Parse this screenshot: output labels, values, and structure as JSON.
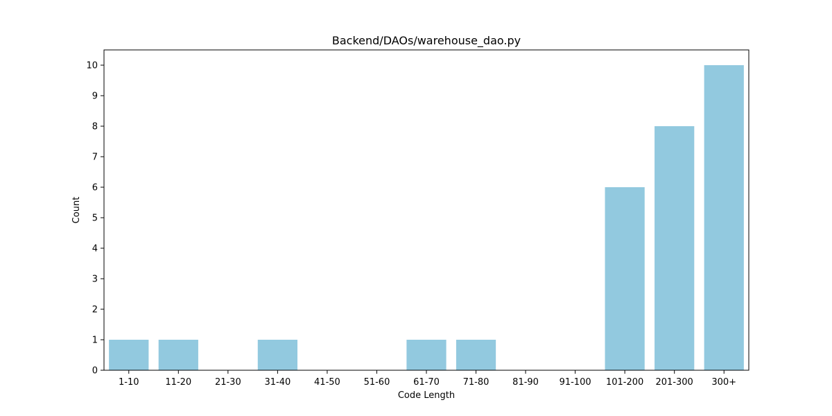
{
  "chart_data": {
    "type": "bar",
    "title": "Backend/DAOs/warehouse_dao.py",
    "xlabel": "Code Length",
    "ylabel": "Count",
    "categories": [
      "1-10",
      "11-20",
      "21-30",
      "31-40",
      "41-50",
      "51-60",
      "61-70",
      "71-80",
      "81-90",
      "91-100",
      "101-200",
      "201-300",
      "300+"
    ],
    "values": [
      1,
      1,
      0,
      1,
      0,
      0,
      1,
      1,
      0,
      0,
      6,
      8,
      10
    ],
    "ylim": [
      0,
      10.5
    ],
    "yticks": [
      "0",
      "1",
      "2",
      "3",
      "4",
      "5",
      "6",
      "7",
      "8",
      "9",
      "10"
    ],
    "bar_color": "#92c9df",
    "grid": false,
    "legend": "none"
  }
}
